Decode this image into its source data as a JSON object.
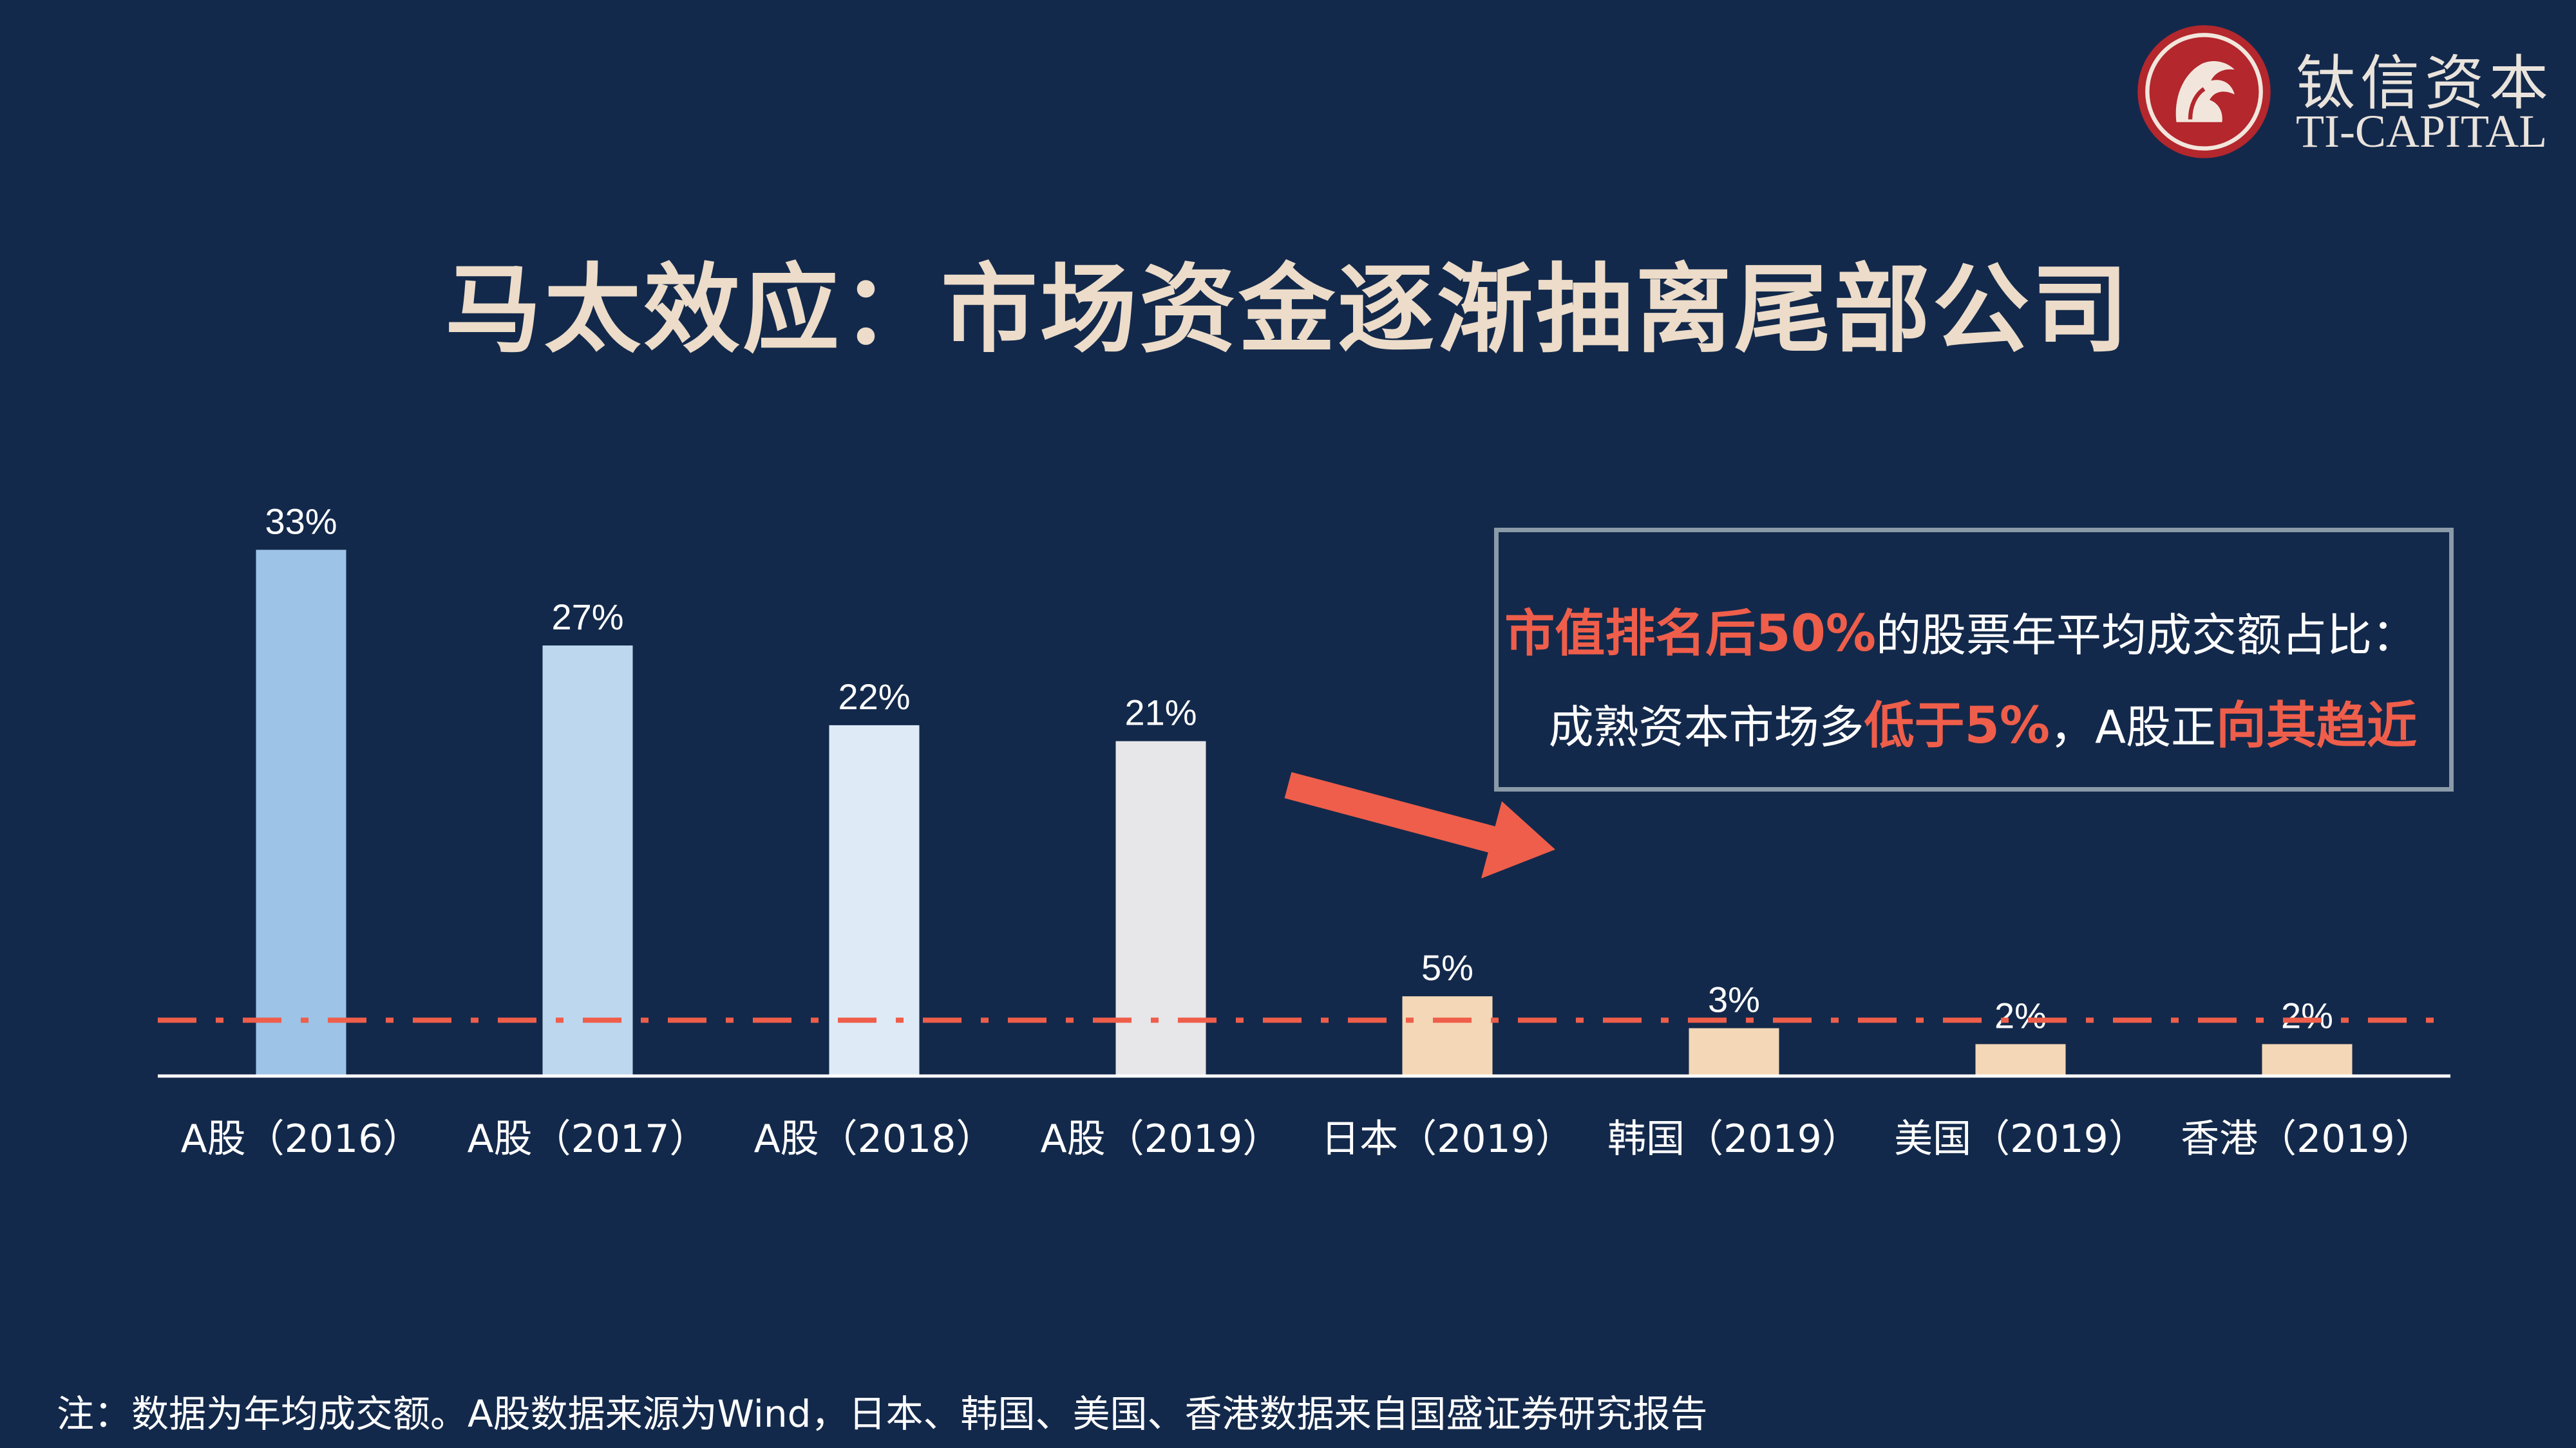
{
  "title": "马太效应：市场资金逐渐抽离尾部公司",
  "logo": {
    "cn": "钛信资本",
    "en": "TI-CAPITAL"
  },
  "callout": {
    "line1": {
      "highlight": "市值排名后50%",
      "text": "的股票年平均成交额占比："
    },
    "line2": {
      "text1": "成熟资本市场多",
      "highlight1": "低于5%",
      "text2": "，A股正",
      "highlight2": "向其趋近"
    }
  },
  "footnote": "注：数据为年均成交额。A股数据来源为Wind，日本、韩国、美国、香港数据来自国盛证券研究报告",
  "colors": {
    "background": "#13294b",
    "accent": "#ef5e4a",
    "title": "#ecdcc9"
  },
  "chart_data": {
    "type": "bar",
    "categories": [
      "A股（2016）",
      "A股（2017）",
      "A股（2018）",
      "A股（2019）",
      "日本（2019）",
      "韩国（2019）",
      "美国（2019）",
      "香港（2019）"
    ],
    "values": [
      33,
      27,
      22,
      21,
      5,
      3,
      2,
      2
    ],
    "data_labels": [
      "33%",
      "27%",
      "22%",
      "21%",
      "5%",
      "3%",
      "2%",
      "2%"
    ],
    "bar_colors": [
      "#9dc3e6",
      "#bdd7ee",
      "#deebf7",
      "#e7e6e9",
      "#f4d7b6",
      "#f4d7b6",
      "#f4d7b6",
      "#f4d7b6"
    ],
    "reference_line": {
      "value": 3.5,
      "style": "dash-dot",
      "color": "#ef5e4a"
    },
    "ylim": [
      0,
      36
    ],
    "grid": false,
    "legend": "none",
    "xlabel": "",
    "ylabel": ""
  }
}
